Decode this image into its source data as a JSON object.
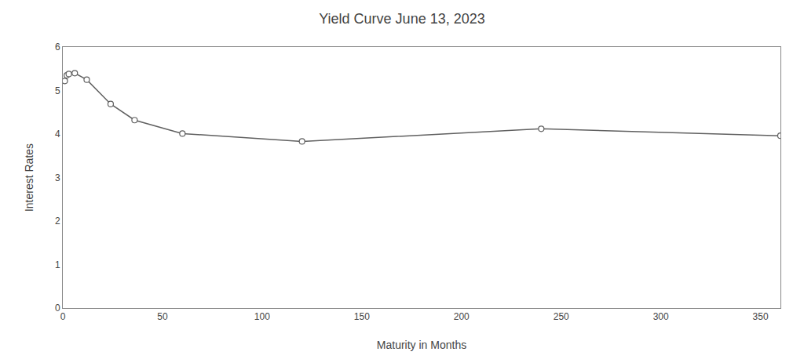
{
  "chart_data": {
    "type": "line",
    "title": "Yield Curve June 13, 2023",
    "xlabel": "Maturity in Months",
    "ylabel": "Interest Rates",
    "x": [
      1,
      2,
      3,
      6,
      12,
      24,
      36,
      60,
      120,
      240,
      360
    ],
    "values": [
      5.22,
      5.35,
      5.38,
      5.4,
      5.25,
      4.69,
      4.32,
      4.01,
      3.83,
      4.12,
      3.96
    ],
    "color": "#606060",
    "marker": "circle",
    "xlim": [
      0,
      360
    ],
    "ylim": [
      0,
      6
    ],
    "xticks": [
      0,
      50,
      100,
      150,
      200,
      250,
      300,
      350
    ],
    "yticks": [
      0,
      1,
      2,
      3,
      4,
      5,
      6
    ],
    "grid": false
  }
}
